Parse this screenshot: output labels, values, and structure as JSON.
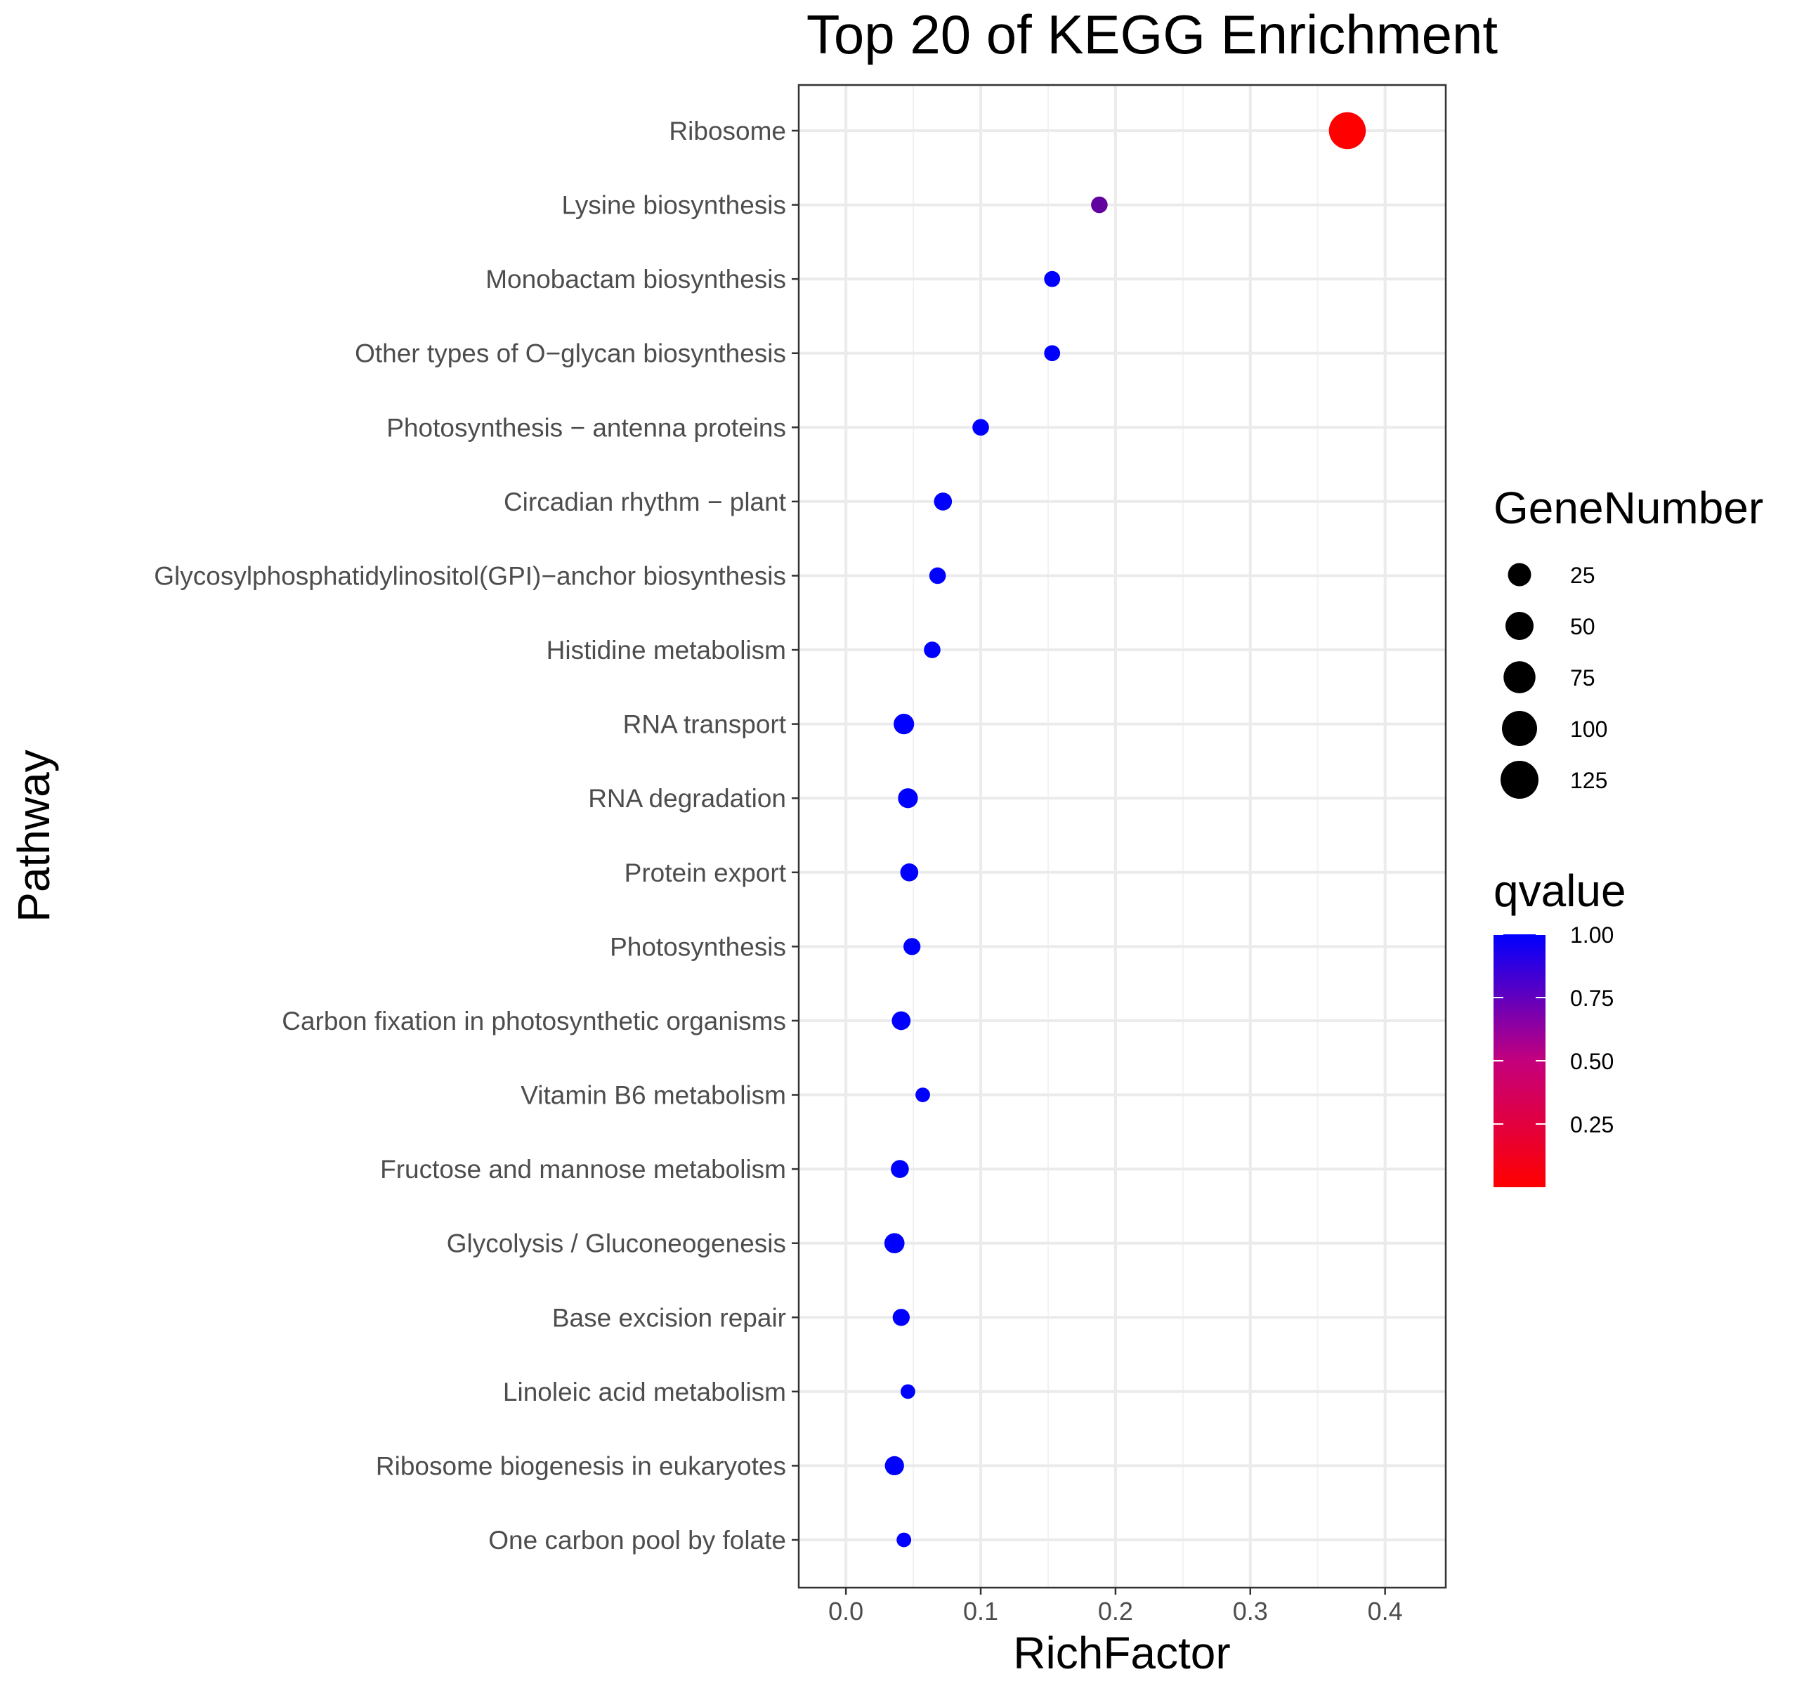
{
  "chart_data": {
    "type": "scatter",
    "title": "Top 20 of KEGG Enrichment",
    "xlabel": "RichFactor",
    "ylabel": "Pathway",
    "xlim": [
      -0.035,
      0.445
    ],
    "xticks": [
      0.0,
      0.1,
      0.2,
      0.3,
      0.4
    ],
    "xtick_labels": [
      "0.0",
      "0.1",
      "0.2",
      "0.3",
      "0.4"
    ],
    "grid": true,
    "legend_position": "right",
    "points": [
      {
        "pathway": "Ribosome",
        "richfactor": 0.372,
        "genenumber": 115,
        "qvalue": 0.0
      },
      {
        "pathway": "Lysine biosynthesis",
        "richfactor": 0.188,
        "genenumber": 5,
        "qvalue": 0.62
      },
      {
        "pathway": "Monobactam biosynthesis",
        "richfactor": 0.153,
        "genenumber": 4,
        "qvalue": 1.0
      },
      {
        "pathway": "Other types of O−glycan biosynthesis",
        "richfactor": 0.153,
        "genenumber": 4,
        "qvalue": 1.0
      },
      {
        "pathway": "Photosynthesis − antenna proteins",
        "richfactor": 0.1,
        "genenumber": 5,
        "qvalue": 1.0
      },
      {
        "pathway": "Circadian rhythm − plant",
        "richfactor": 0.072,
        "genenumber": 8,
        "qvalue": 1.0
      },
      {
        "pathway": "Glycosylphosphatidylinositol(GPI)−anchor biosynthesis",
        "richfactor": 0.068,
        "genenumber": 5,
        "qvalue": 1.0
      },
      {
        "pathway": "Histidine metabolism",
        "richfactor": 0.064,
        "genenumber": 5,
        "qvalue": 1.0
      },
      {
        "pathway": "RNA transport",
        "richfactor": 0.043,
        "genenumber": 15,
        "qvalue": 1.0
      },
      {
        "pathway": "RNA degradation",
        "richfactor": 0.046,
        "genenumber": 13,
        "qvalue": 1.0
      },
      {
        "pathway": "Protein export",
        "richfactor": 0.047,
        "genenumber": 8,
        "qvalue": 1.0
      },
      {
        "pathway": "Photosynthesis",
        "richfactor": 0.049,
        "genenumber": 6,
        "qvalue": 1.0
      },
      {
        "pathway": "Carbon fixation in photosynthetic organisms",
        "richfactor": 0.041,
        "genenumber": 10,
        "qvalue": 1.0
      },
      {
        "pathway": "Vitamin B6 metabolism",
        "richfactor": 0.057,
        "genenumber": 2,
        "qvalue": 1.0
      },
      {
        "pathway": "Fructose and mannose metabolism",
        "richfactor": 0.04,
        "genenumber": 8,
        "qvalue": 1.0
      },
      {
        "pathway": "Glycolysis / Gluconeogenesis",
        "richfactor": 0.036,
        "genenumber": 14,
        "qvalue": 1.0
      },
      {
        "pathway": "Base excision repair",
        "richfactor": 0.041,
        "genenumber": 6,
        "qvalue": 1.0
      },
      {
        "pathway": "Linoleic acid metabolism",
        "richfactor": 0.046,
        "genenumber": 2,
        "qvalue": 1.0
      },
      {
        "pathway": "Ribosome biogenesis in eukaryotes",
        "richfactor": 0.036,
        "genenumber": 11,
        "qvalue": 1.0
      },
      {
        "pathway": "One carbon pool by folate",
        "richfactor": 0.043,
        "genenumber": 2,
        "qvalue": 1.0
      }
    ],
    "size_legend": {
      "title": "GeneNumber",
      "values": [
        25,
        50,
        75,
        100,
        125
      ],
      "labels": [
        "25",
        "50",
        "75",
        "100",
        "125"
      ]
    },
    "color_legend": {
      "title": "qvalue",
      "ticks": [
        1.0,
        0.75,
        0.5,
        0.25
      ],
      "labels": [
        "1.00",
        "0.75",
        "0.50",
        "0.25"
      ],
      "low_color": "#ff0000",
      "high_color": "#0000ff"
    }
  }
}
